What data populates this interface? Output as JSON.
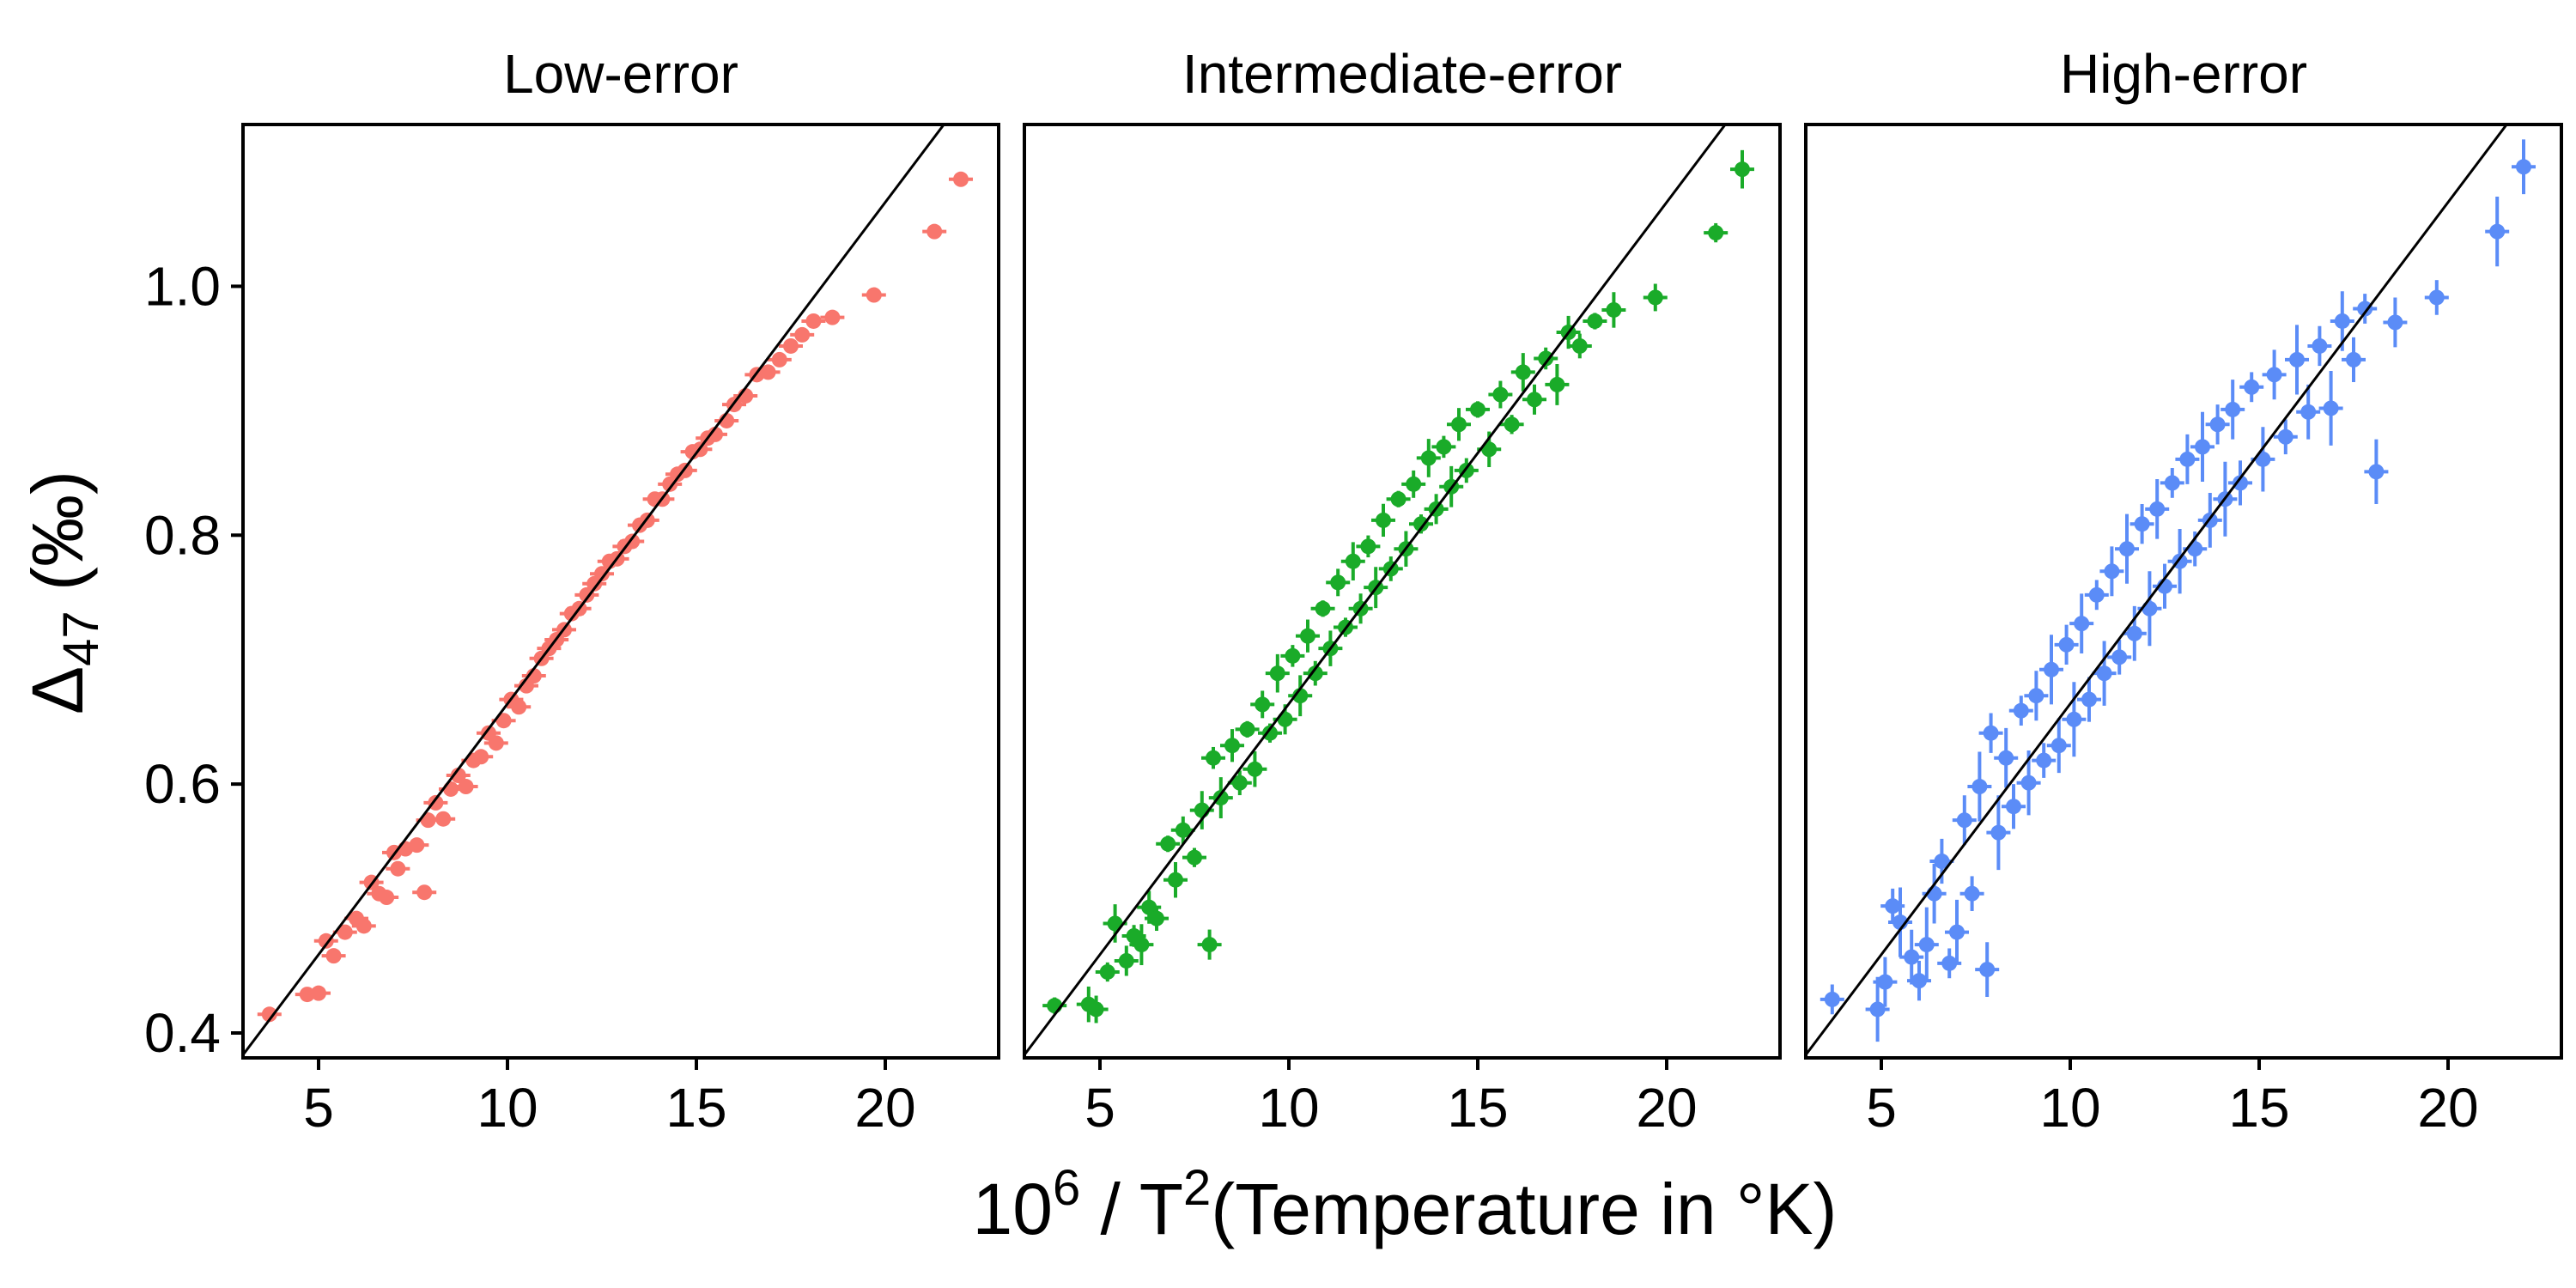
{
  "chart_data": [
    {
      "type": "scatter",
      "title": "Low-error",
      "color": "#F8766D",
      "xlim": [
        3,
        23
      ],
      "ylim": [
        0.38,
        1.13
      ],
      "xticks": [
        5,
        10,
        15,
        20
      ],
      "yticks": [
        0.4,
        0.6,
        0.8,
        1.0
      ],
      "ytick_labels": [
        "0.4",
        "0.6",
        "0.8",
        "1.0"
      ],
      "xtick_labels": [
        "5",
        "10",
        "15",
        "20"
      ],
      "fit_line": {
        "slope": 0.0403,
        "intercept": 0.2615
      },
      "error_bars": "small",
      "points": [
        [
          3.7,
          0.415
        ],
        [
          4.7,
          0.431
        ],
        [
          5.0,
          0.432
        ],
        [
          5.2,
          0.474
        ],
        [
          5.4,
          0.462
        ],
        [
          5.7,
          0.481
        ],
        [
          6.0,
          0.492
        ],
        [
          6.2,
          0.486
        ],
        [
          6.4,
          0.521
        ],
        [
          6.6,
          0.512
        ],
        [
          6.8,
          0.509
        ],
        [
          7.0,
          0.545
        ],
        [
          7.1,
          0.532
        ],
        [
          7.3,
          0.548
        ],
        [
          7.6,
          0.551
        ],
        [
          7.8,
          0.513
        ],
        [
          7.9,
          0.571
        ],
        [
          8.1,
          0.585
        ],
        [
          8.3,
          0.572
        ],
        [
          8.5,
          0.596
        ],
        [
          8.7,
          0.607
        ],
        [
          8.9,
          0.598
        ],
        [
          9.1,
          0.619
        ],
        [
          9.3,
          0.622
        ],
        [
          9.5,
          0.641
        ],
        [
          9.7,
          0.633
        ],
        [
          9.9,
          0.651
        ],
        [
          10.1,
          0.668
        ],
        [
          10.3,
          0.662
        ],
        [
          10.5,
          0.679
        ],
        [
          10.7,
          0.687
        ],
        [
          10.9,
          0.701
        ],
        [
          11.1,
          0.709
        ],
        [
          11.3,
          0.716
        ],
        [
          11.5,
          0.724
        ],
        [
          11.7,
          0.737
        ],
        [
          11.9,
          0.741
        ],
        [
          12.1,
          0.752
        ],
        [
          12.3,
          0.761
        ],
        [
          12.5,
          0.769
        ],
        [
          12.7,
          0.779
        ],
        [
          12.9,
          0.781
        ],
        [
          13.1,
          0.791
        ],
        [
          13.3,
          0.795
        ],
        [
          13.5,
          0.808
        ],
        [
          13.7,
          0.812
        ],
        [
          13.9,
          0.829
        ],
        [
          14.1,
          0.829
        ],
        [
          14.3,
          0.841
        ],
        [
          14.5,
          0.849
        ],
        [
          14.7,
          0.852
        ],
        [
          14.9,
          0.867
        ],
        [
          15.1,
          0.869
        ],
        [
          15.3,
          0.878
        ],
        [
          15.5,
          0.881
        ],
        [
          15.8,
          0.892
        ],
        [
          16.0,
          0.905
        ],
        [
          16.3,
          0.912
        ],
        [
          16.6,
          0.929
        ],
        [
          16.9,
          0.931
        ],
        [
          17.2,
          0.941
        ],
        [
          17.5,
          0.952
        ],
        [
          17.8,
          0.961
        ],
        [
          18.1,
          0.972
        ],
        [
          18.6,
          0.975
        ],
        [
          19.7,
          0.993
        ],
        [
          21.3,
          1.044
        ],
        [
          22.0,
          1.086
        ]
      ]
    },
    {
      "type": "scatter",
      "title": "Intermediate-error",
      "color": "#1AAB29",
      "xlim": [
        3,
        23
      ],
      "ylim": [
        0.38,
        1.13
      ],
      "xticks": [
        5,
        10,
        15,
        20
      ],
      "yticks": [
        0.4,
        0.6,
        0.8,
        1.0
      ],
      "xtick_labels": [
        "5",
        "10",
        "15",
        "20"
      ],
      "fit_line": {
        "slope": 0.0403,
        "intercept": 0.2615
      },
      "error_bars": "medium",
      "points": [
        [
          3.8,
          0.422
        ],
        [
          4.7,
          0.423
        ],
        [
          4.9,
          0.419
        ],
        [
          5.2,
          0.449
        ],
        [
          5.4,
          0.488
        ],
        [
          5.7,
          0.458
        ],
        [
          5.9,
          0.478
        ],
        [
          6.1,
          0.471
        ],
        [
          6.3,
          0.501
        ],
        [
          6.5,
          0.492
        ],
        [
          6.8,
          0.552
        ],
        [
          7.0,
          0.523
        ],
        [
          7.2,
          0.563
        ],
        [
          7.5,
          0.541
        ],
        [
          7.7,
          0.579
        ],
        [
          7.9,
          0.471
        ],
        [
          8.0,
          0.621
        ],
        [
          8.2,
          0.589
        ],
        [
          8.5,
          0.631
        ],
        [
          8.7,
          0.601
        ],
        [
          8.9,
          0.644
        ],
        [
          9.1,
          0.612
        ],
        [
          9.3,
          0.664
        ],
        [
          9.5,
          0.641
        ],
        [
          9.7,
          0.689
        ],
        [
          9.9,
          0.652
        ],
        [
          10.1,
          0.703
        ],
        [
          10.3,
          0.671
        ],
        [
          10.5,
          0.719
        ],
        [
          10.7,
          0.689
        ],
        [
          10.9,
          0.741
        ],
        [
          11.1,
          0.709
        ],
        [
          11.3,
          0.762
        ],
        [
          11.5,
          0.726
        ],
        [
          11.7,
          0.779
        ],
        [
          11.9,
          0.741
        ],
        [
          12.1,
          0.791
        ],
        [
          12.3,
          0.758
        ],
        [
          12.5,
          0.812
        ],
        [
          12.7,
          0.773
        ],
        [
          12.9,
          0.829
        ],
        [
          13.1,
          0.789
        ],
        [
          13.3,
          0.841
        ],
        [
          13.5,
          0.809
        ],
        [
          13.7,
          0.862
        ],
        [
          13.9,
          0.821
        ],
        [
          14.1,
          0.871
        ],
        [
          14.3,
          0.839
        ],
        [
          14.5,
          0.889
        ],
        [
          14.7,
          0.852
        ],
        [
          15.0,
          0.901
        ],
        [
          15.3,
          0.869
        ],
        [
          15.6,
          0.913
        ],
        [
          15.9,
          0.889
        ],
        [
          16.2,
          0.931
        ],
        [
          16.5,
          0.909
        ],
        [
          16.8,
          0.942
        ],
        [
          17.1,
          0.921
        ],
        [
          17.4,
          0.963
        ],
        [
          17.7,
          0.952
        ],
        [
          18.1,
          0.972
        ],
        [
          18.6,
          0.981
        ],
        [
          19.7,
          0.991
        ],
        [
          21.3,
          1.043
        ],
        [
          22.0,
          1.094
        ]
      ]
    },
    {
      "type": "scatter",
      "title": "High-error",
      "color": "#5B8CF7",
      "xlim": [
        3,
        23
      ],
      "ylim": [
        0.38,
        1.13
      ],
      "xticks": [
        5,
        10,
        15,
        20
      ],
      "yticks": [
        0.4,
        0.6,
        0.8,
        1.0
      ],
      "xtick_labels": [
        "5",
        "10",
        "15",
        "20"
      ],
      "fit_line": {
        "slope": 0.0403,
        "intercept": 0.2615
      },
      "error_bars": "large",
      "points": [
        [
          3.7,
          0.427
        ],
        [
          4.9,
          0.419
        ],
        [
          5.1,
          0.441
        ],
        [
          5.3,
          0.502
        ],
        [
          5.5,
          0.489
        ],
        [
          5.8,
          0.461
        ],
        [
          6.0,
          0.442
        ],
        [
          6.2,
          0.471
        ],
        [
          6.4,
          0.512
        ],
        [
          6.6,
          0.538
        ],
        [
          6.8,
          0.456
        ],
        [
          7.0,
          0.481
        ],
        [
          7.2,
          0.571
        ],
        [
          7.4,
          0.512
        ],
        [
          7.6,
          0.598
        ],
        [
          7.8,
          0.451
        ],
        [
          7.9,
          0.641
        ],
        [
          8.1,
          0.561
        ],
        [
          8.3,
          0.621
        ],
        [
          8.5,
          0.582
        ],
        [
          8.7,
          0.659
        ],
        [
          8.9,
          0.601
        ],
        [
          9.1,
          0.671
        ],
        [
          9.3,
          0.619
        ],
        [
          9.5,
          0.692
        ],
        [
          9.7,
          0.631
        ],
        [
          9.9,
          0.712
        ],
        [
          10.1,
          0.652
        ],
        [
          10.3,
          0.729
        ],
        [
          10.5,
          0.668
        ],
        [
          10.7,
          0.752
        ],
        [
          10.9,
          0.689
        ],
        [
          11.1,
          0.771
        ],
        [
          11.3,
          0.702
        ],
        [
          11.5,
          0.789
        ],
        [
          11.7,
          0.721
        ],
        [
          11.9,
          0.809
        ],
        [
          12.1,
          0.741
        ],
        [
          12.3,
          0.821
        ],
        [
          12.5,
          0.759
        ],
        [
          12.7,
          0.842
        ],
        [
          12.9,
          0.779
        ],
        [
          13.1,
          0.861
        ],
        [
          13.3,
          0.789
        ],
        [
          13.5,
          0.871
        ],
        [
          13.7,
          0.812
        ],
        [
          13.9,
          0.889
        ],
        [
          14.1,
          0.829
        ],
        [
          14.3,
          0.901
        ],
        [
          14.5,
          0.842
        ],
        [
          14.8,
          0.919
        ],
        [
          15.1,
          0.861
        ],
        [
          15.4,
          0.929
        ],
        [
          15.7,
          0.879
        ],
        [
          16.0,
          0.941
        ],
        [
          16.3,
          0.899
        ],
        [
          16.6,
          0.952
        ],
        [
          16.9,
          0.902
        ],
        [
          17.2,
          0.972
        ],
        [
          17.5,
          0.941
        ],
        [
          17.8,
          0.982
        ],
        [
          18.1,
          0.851
        ],
        [
          18.6,
          0.971
        ],
        [
          19.7,
          0.991
        ],
        [
          21.3,
          1.044
        ],
        [
          22.0,
          1.096
        ]
      ]
    }
  ],
  "axes": {
    "ylabel_symbol": "Δ",
    "ylabel_sub": "47",
    "ylabel_rest": " (‰)",
    "xlabel_base": "10",
    "xlabel_exp": "6",
    "xlabel_mid": " / T",
    "xlabel_exp2": "2",
    "xlabel_rest": "(Temperature in °K)"
  }
}
